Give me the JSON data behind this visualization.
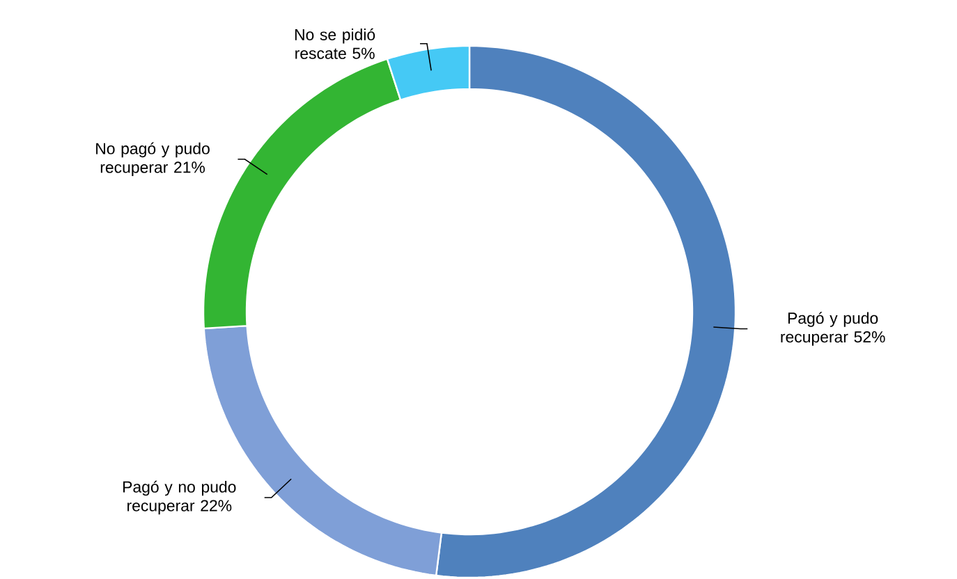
{
  "chart_data": {
    "type": "donut",
    "categories": [
      "Pagó y pudo recuperar",
      "Pagó y no pudo recuperar",
      "No pagó y pudo recuperar",
      "No se pidió rescate"
    ],
    "values": [
      52,
      22,
      21,
      5
    ],
    "value_labels": [
      "52%",
      "22%",
      "21%",
      "5%"
    ],
    "colors": [
      "#4f81bd",
      "#7f9fd7",
      "#33b533",
      "#45c9f5"
    ]
  }
}
